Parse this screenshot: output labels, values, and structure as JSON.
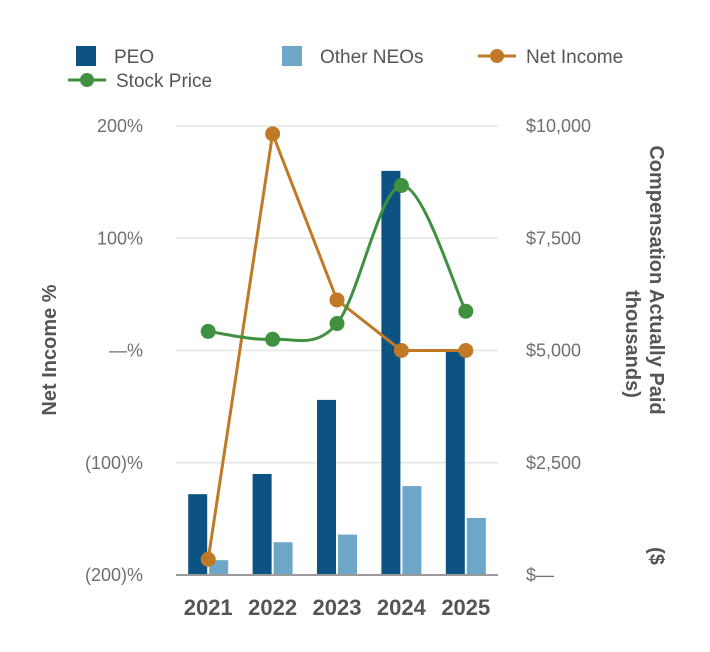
{
  "chart_data": {
    "type": "bar",
    "categories": [
      "2021",
      "2022",
      "2023",
      "2024",
      "2025"
    ],
    "bar_series": [
      {
        "name": "PEO",
        "color": "#0c5282",
        "axis": "right",
        "values": [
          1800,
          2250,
          3900,
          9000,
          5000
        ]
      },
      {
        "name": "Other NEOs",
        "color": "#6ea6c8",
        "axis": "right",
        "values": [
          330,
          730,
          900,
          1980,
          1270
        ]
      }
    ],
    "line_series": [
      {
        "name": "Net Income",
        "color": "#c07a27",
        "axis": "left",
        "smooth": false,
        "values": [
          -186,
          193,
          45,
          0,
          0
        ]
      },
      {
        "name": "Stock Price",
        "color": "#3f9140",
        "axis": "left",
        "smooth": true,
        "values": [
          17,
          10,
          24,
          147,
          35
        ]
      }
    ],
    "left_axis": {
      "label": "Net Income %",
      "ylim": [
        -200,
        200
      ],
      "ticks": [
        {
          "value": 200,
          "label": "200%"
        },
        {
          "value": 100,
          "label": "100%"
        },
        {
          "value": 0,
          "label": "—%"
        },
        {
          "value": -100,
          "label": "(100)%"
        },
        {
          "value": -200,
          "label": "(200)%"
        }
      ]
    },
    "right_axis": {
      "label_line1": "Compensation Actually Paid",
      "label_line2": "thousands)",
      "label_prefix": "($",
      "ylim": [
        0,
        10000
      ],
      "ticks": [
        {
          "value": 10000,
          "label": "$10,000"
        },
        {
          "value": 7500,
          "label": "$7,500"
        },
        {
          "value": 5000,
          "label": "$5,000"
        },
        {
          "value": 2500,
          "label": "$2,500"
        },
        {
          "value": 0,
          "label": "$—"
        }
      ]
    },
    "grid": true,
    "legend_position": "top",
    "legend": [
      {
        "name": "PEO",
        "marker": "square",
        "color": "#0c5282"
      },
      {
        "name": "Other NEOs",
        "marker": "square",
        "color": "#6ea6c8"
      },
      {
        "name": "Net Income",
        "marker": "line-dot",
        "color": "#c07a27"
      },
      {
        "name": "Stock Price",
        "marker": "line-dot",
        "color": "#3f9140"
      }
    ]
  }
}
